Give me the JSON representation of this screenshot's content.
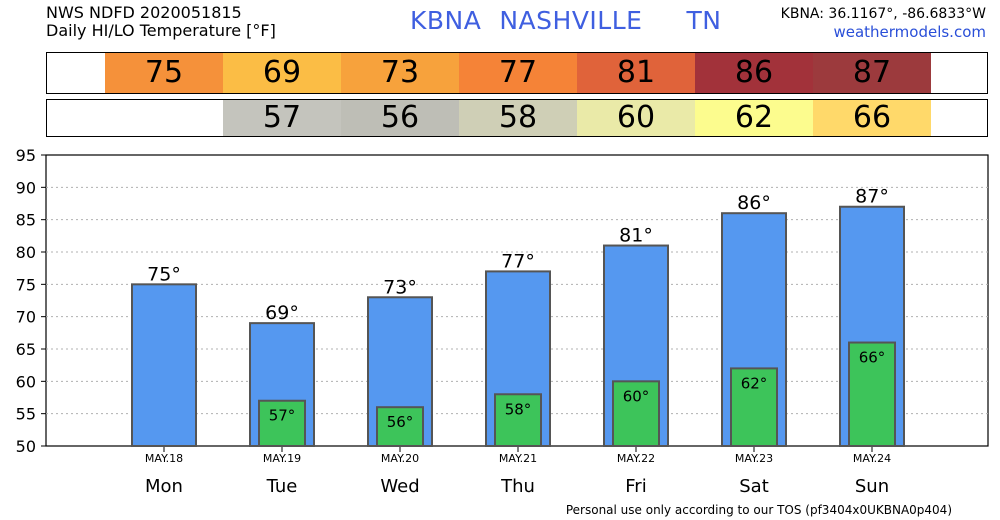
{
  "header": {
    "line1": "NWS NDFD 2020051815",
    "line2": "Daily HI/LO Temperature [°F]",
    "station": "KBNA",
    "city": "NASHVILLE",
    "state": "TN",
    "coords": "KBNA: 36.1167°, -86.6833°W",
    "site": "weathermodels.com"
  },
  "hi_strip": [
    {
      "value": "75",
      "color": "#f5913a"
    },
    {
      "value": "69",
      "color": "#fbbd45"
    },
    {
      "value": "73",
      "color": "#f7a23c"
    },
    {
      "value": "77",
      "color": "#f58337"
    },
    {
      "value": "81",
      "color": "#e0633a"
    },
    {
      "value": "86",
      "color": "#a2323a"
    },
    {
      "value": "87",
      "color": "#9c3a3d"
    }
  ],
  "lo_strip": [
    {
      "value": "",
      "color": ""
    },
    {
      "value": "57",
      "color": "#c4c4bd"
    },
    {
      "value": "56",
      "color": "#bebeb6"
    },
    {
      "value": "58",
      "color": "#cfcfb6"
    },
    {
      "value": "60",
      "color": "#eaeaa8"
    },
    {
      "value": "62",
      "color": "#fcfc8e"
    },
    {
      "value": "66",
      "color": "#ffd96a"
    }
  ],
  "chart_data": {
    "type": "bar",
    "categories": [
      "Mon",
      "Tue",
      "Wed",
      "Thu",
      "Fri",
      "Sat",
      "Sun"
    ],
    "dates": [
      "MAY.18",
      "MAY.19",
      "MAY.20",
      "MAY.21",
      "MAY.22",
      "MAY.23",
      "MAY.24"
    ],
    "series": [
      {
        "values": [
          75,
          69,
          73,
          77,
          81,
          86,
          87
        ],
        "color": "#5598f0"
      },
      {
        "values": [
          null,
          57,
          56,
          58,
          60,
          62,
          66
        ],
        "color": "#3dc45a"
      }
    ],
    "ylim": [
      50,
      95
    ],
    "yticks": [
      50,
      55,
      60,
      65,
      70,
      75,
      80,
      85,
      90,
      95
    ],
    "grid": true,
    "degree": "°"
  },
  "footer": "Personal use only according to our TOS (pf3404x0UKBNA0p404)"
}
